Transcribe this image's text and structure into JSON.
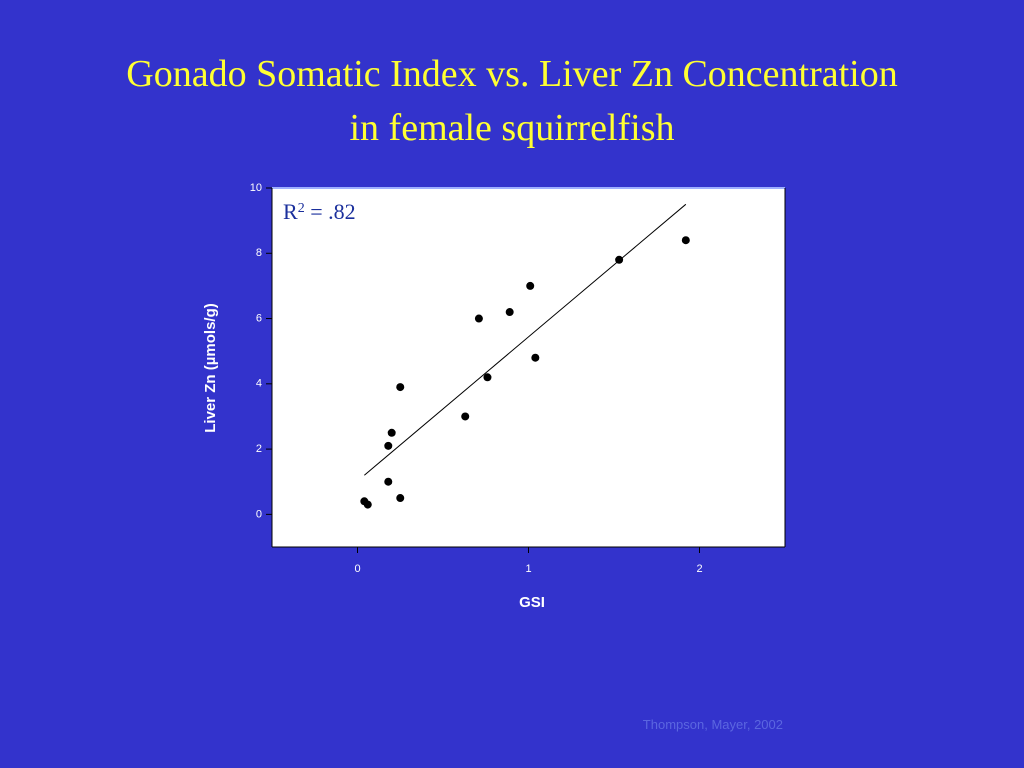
{
  "chart_data": {
    "type": "scatter",
    "title": [
      "Gonado Somatic Index vs. Liver Zn Concentration",
      "in female squirrelfish"
    ],
    "x_label": "GSI",
    "y_label": "Liver Zn (µmols/g)",
    "annotation": [
      "R",
      "2",
      " = .82"
    ],
    "credit": "Thompson, Mayer, 2002",
    "series": [
      {
        "color": "#000000",
        "x": [
          0.04,
          0.06,
          0.18,
          0.18,
          0.2,
          0.25,
          0.25,
          0.63,
          0.71,
          0.76,
          0.89,
          1.01,
          1.04,
          1.53,
          1.92
        ],
        "values": [
          0.4,
          0.3,
          2.1,
          1.0,
          2.5,
          3.9,
          0.5,
          3.0,
          6.0,
          4.2,
          6.2,
          7.0,
          4.8,
          7.8,
          8.4
        ]
      }
    ],
    "fit_line": {
      "x": [
        0.04,
        1.92
      ],
      "y": [
        1.2,
        9.5
      ]
    },
    "xlim": [
      -0.5,
      2.5
    ],
    "ylim": [
      -1,
      10
    ],
    "xticks": [
      0,
      1,
      2
    ],
    "yticks": [
      0,
      2,
      4,
      6,
      8,
      10
    ]
  }
}
